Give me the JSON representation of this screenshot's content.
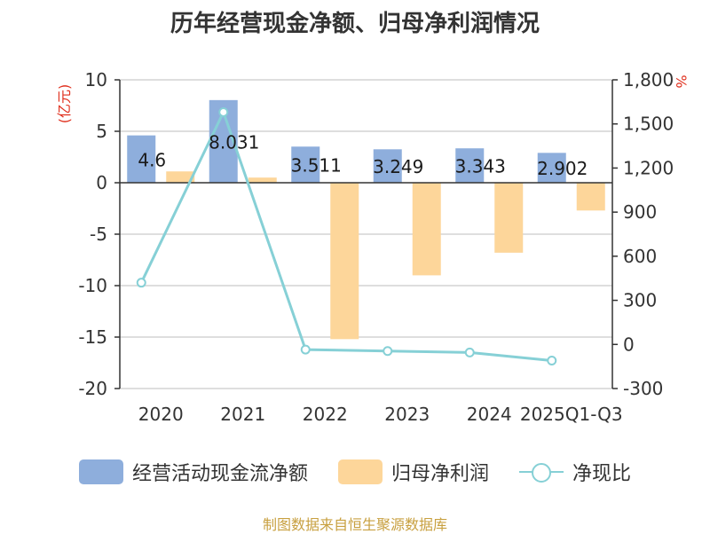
{
  "chart_data": {
    "type": "bar+line",
    "title": "历年经营现金净额、归母净利润情况",
    "categories": [
      "2020",
      "2021",
      "2022",
      "2023",
      "2024",
      "2025Q1-Q3"
    ],
    "series": [
      {
        "name": "经营活动现金流净额",
        "type": "bar",
        "axis": "left",
        "values": [
          4.6,
          8.031,
          3.511,
          3.249,
          3.343,
          2.902
        ],
        "labels": [
          "4.6",
          "8.031",
          "3.511",
          "3.249",
          "3.343",
          "2.902"
        ],
        "color": "#8eaedc"
      },
      {
        "name": "归母净利润",
        "type": "bar",
        "axis": "left",
        "values": [
          1.1,
          0.5,
          -15.2,
          -9.0,
          -6.8,
          -2.7
        ],
        "color": "#fdd69a"
      },
      {
        "name": "净现比",
        "type": "line",
        "axis": "right",
        "values": [
          420,
          1580,
          -35,
          -45,
          -55,
          -110
        ],
        "color": "#86d0d6"
      }
    ],
    "left_axis": {
      "unit": "(亿元)",
      "ylim": [
        -20,
        10
      ],
      "ticks": [
        10,
        5,
        0,
        -5,
        -10,
        -15,
        -20
      ]
    },
    "right_axis": {
      "unit": "%",
      "ylim": [
        -300,
        1800
      ],
      "ticks": [
        1800,
        1500,
        1200,
        900,
        600,
        300,
        0,
        -300
      ],
      "tick_labels": [
        "1,800",
        "1,500",
        "1,200",
        "900",
        "600",
        "300",
        "0",
        "-300"
      ]
    },
    "grid": true,
    "legend_position": "bottom"
  },
  "legend": {
    "items": [
      "经营活动现金流净额",
      "归母净利润",
      "净现比"
    ]
  },
  "source_text": "制图数据来自恒生聚源数据库"
}
